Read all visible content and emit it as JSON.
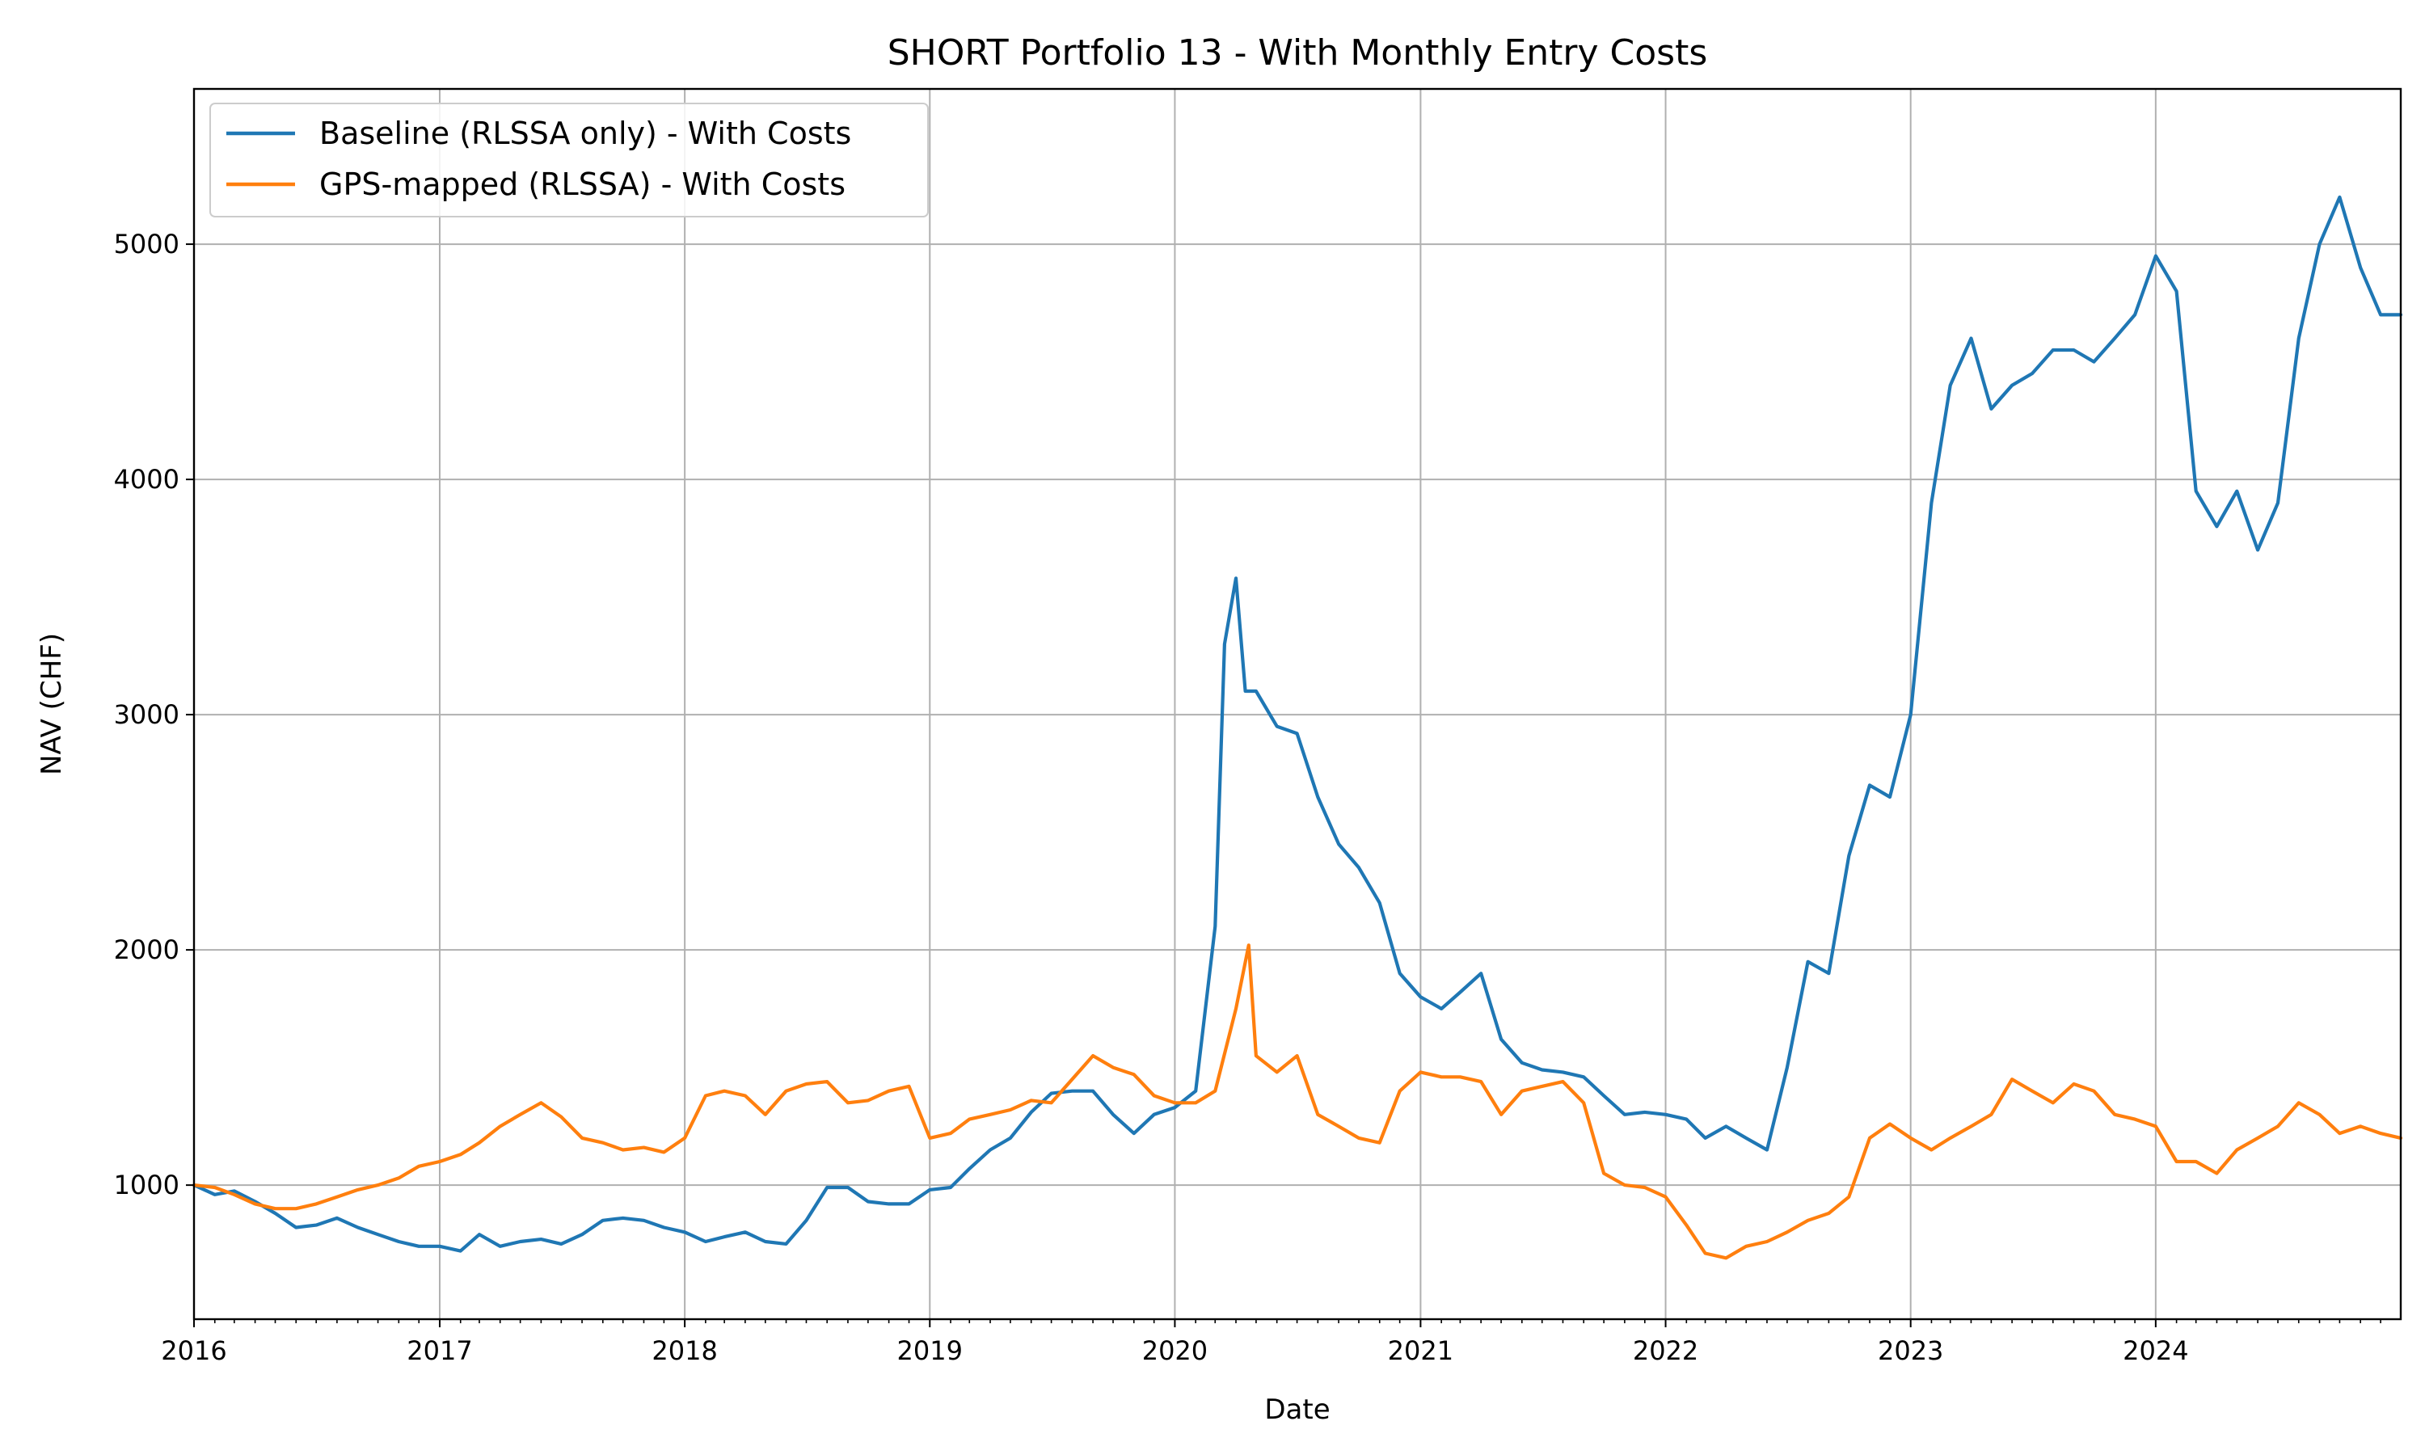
{
  "chart_data": {
    "type": "line",
    "title": "SHORT Portfolio 13 - With Monthly Entry Costs",
    "xlabel": "Date",
    "ylabel": "NAV (CHF)",
    "xlim": [
      "2016-01-01",
      "2024-12-31"
    ],
    "ylim": [
      430,
      5660
    ],
    "x_ticks": [
      "2016",
      "2017",
      "2018",
      "2019",
      "2020",
      "2021",
      "2022",
      "2023",
      "2024"
    ],
    "y_ticks": [
      1000,
      2000,
      3000,
      4000,
      5000
    ],
    "grid": true,
    "legend_position": "upper-left",
    "series": [
      {
        "name": "Baseline (RLSSA only) - With Costs",
        "color": "#1f77b4",
        "points": [
          [
            "2016-01-01",
            1000
          ],
          [
            "2016-02-01",
            960
          ],
          [
            "2016-03-01",
            975
          ],
          [
            "2016-04-01",
            930
          ],
          [
            "2016-05-01",
            880
          ],
          [
            "2016-06-01",
            820
          ],
          [
            "2016-07-01",
            830
          ],
          [
            "2016-08-01",
            860
          ],
          [
            "2016-09-01",
            820
          ],
          [
            "2016-10-01",
            790
          ],
          [
            "2016-11-01",
            760
          ],
          [
            "2016-12-01",
            740
          ],
          [
            "2017-01-01",
            740
          ],
          [
            "2017-02-01",
            720
          ],
          [
            "2017-03-01",
            790
          ],
          [
            "2017-04-01",
            740
          ],
          [
            "2017-05-01",
            760
          ],
          [
            "2017-06-01",
            770
          ],
          [
            "2017-07-01",
            750
          ],
          [
            "2017-08-01",
            790
          ],
          [
            "2017-09-01",
            850
          ],
          [
            "2017-10-01",
            860
          ],
          [
            "2017-11-01",
            850
          ],
          [
            "2017-12-01",
            820
          ],
          [
            "2018-01-01",
            800
          ],
          [
            "2018-02-01",
            760
          ],
          [
            "2018-03-01",
            780
          ],
          [
            "2018-04-01",
            800
          ],
          [
            "2018-05-01",
            760
          ],
          [
            "2018-06-01",
            750
          ],
          [
            "2018-07-01",
            850
          ],
          [
            "2018-08-01",
            990
          ],
          [
            "2018-09-01",
            990
          ],
          [
            "2018-10-01",
            930
          ],
          [
            "2018-11-01",
            920
          ],
          [
            "2018-12-01",
            920
          ],
          [
            "2019-01-01",
            980
          ],
          [
            "2019-02-01",
            990
          ],
          [
            "2019-03-01",
            1070
          ],
          [
            "2019-04-01",
            1150
          ],
          [
            "2019-05-01",
            1200
          ],
          [
            "2019-06-01",
            1310
          ],
          [
            "2019-07-01",
            1390
          ],
          [
            "2019-08-01",
            1400
          ],
          [
            "2019-09-01",
            1400
          ],
          [
            "2019-10-01",
            1300
          ],
          [
            "2019-11-01",
            1220
          ],
          [
            "2019-12-01",
            1300
          ],
          [
            "2020-01-01",
            1330
          ],
          [
            "2020-02-01",
            1400
          ],
          [
            "2020-03-01",
            2100
          ],
          [
            "2020-03-15",
            3300
          ],
          [
            "2020-04-01",
            3580
          ],
          [
            "2020-04-15",
            3100
          ],
          [
            "2020-05-01",
            3100
          ],
          [
            "2020-06-01",
            2950
          ],
          [
            "2020-07-01",
            2920
          ],
          [
            "2020-08-01",
            2650
          ],
          [
            "2020-09-01",
            2450
          ],
          [
            "2020-10-01",
            2350
          ],
          [
            "2020-11-01",
            2200
          ],
          [
            "2020-12-01",
            1900
          ],
          [
            "2021-01-01",
            1800
          ],
          [
            "2021-02-01",
            1750
          ],
          [
            "2021-03-01",
            1820
          ],
          [
            "2021-04-01",
            1900
          ],
          [
            "2021-05-01",
            1620
          ],
          [
            "2021-06-01",
            1520
          ],
          [
            "2021-07-01",
            1490
          ],
          [
            "2021-08-01",
            1480
          ],
          [
            "2021-09-01",
            1460
          ],
          [
            "2021-10-01",
            1380
          ],
          [
            "2021-11-01",
            1300
          ],
          [
            "2021-12-01",
            1310
          ],
          [
            "2022-01-01",
            1300
          ],
          [
            "2022-02-01",
            1280
          ],
          [
            "2022-03-01",
            1200
          ],
          [
            "2022-04-01",
            1250
          ],
          [
            "2022-05-01",
            1200
          ],
          [
            "2022-06-01",
            1150
          ],
          [
            "2022-07-01",
            1500
          ],
          [
            "2022-08-01",
            1950
          ],
          [
            "2022-09-01",
            1900
          ],
          [
            "2022-10-01",
            2400
          ],
          [
            "2022-11-01",
            2700
          ],
          [
            "2022-12-01",
            2650
          ],
          [
            "2023-01-01",
            3000
          ],
          [
            "2023-02-01",
            3900
          ],
          [
            "2023-03-01",
            4400
          ],
          [
            "2023-04-01",
            4600
          ],
          [
            "2023-05-01",
            4300
          ],
          [
            "2023-06-01",
            4400
          ],
          [
            "2023-07-01",
            4450
          ],
          [
            "2023-08-01",
            4550
          ],
          [
            "2023-09-01",
            4550
          ],
          [
            "2023-10-01",
            4500
          ],
          [
            "2023-11-01",
            4600
          ],
          [
            "2023-12-01",
            4700
          ],
          [
            "2024-01-01",
            4950
          ],
          [
            "2024-02-01",
            4800
          ],
          [
            "2024-03-01",
            3950
          ],
          [
            "2024-04-01",
            3800
          ],
          [
            "2024-05-01",
            3950
          ],
          [
            "2024-06-01",
            3700
          ],
          [
            "2024-07-01",
            3900
          ],
          [
            "2024-08-01",
            4600
          ],
          [
            "2024-09-01",
            5000
          ],
          [
            "2024-10-01",
            5200
          ],
          [
            "2024-11-01",
            4900
          ],
          [
            "2024-12-01",
            4700
          ],
          [
            "2024-12-31",
            4700
          ]
        ]
      },
      {
        "name": "GPS-mapped (RLSSA) - With Costs",
        "color": "#ff7f0e",
        "points": [
          [
            "2016-01-01",
            1000
          ],
          [
            "2016-02-01",
            990
          ],
          [
            "2016-03-01",
            960
          ],
          [
            "2016-04-01",
            920
          ],
          [
            "2016-05-01",
            900
          ],
          [
            "2016-06-01",
            900
          ],
          [
            "2016-07-01",
            920
          ],
          [
            "2016-08-01",
            950
          ],
          [
            "2016-09-01",
            980
          ],
          [
            "2016-10-01",
            1000
          ],
          [
            "2016-11-01",
            1030
          ],
          [
            "2016-12-01",
            1080
          ],
          [
            "2017-01-01",
            1100
          ],
          [
            "2017-02-01",
            1130
          ],
          [
            "2017-03-01",
            1180
          ],
          [
            "2017-04-01",
            1250
          ],
          [
            "2017-05-01",
            1300
          ],
          [
            "2017-06-01",
            1350
          ],
          [
            "2017-07-01",
            1290
          ],
          [
            "2017-08-01",
            1200
          ],
          [
            "2017-09-01",
            1180
          ],
          [
            "2017-10-01",
            1150
          ],
          [
            "2017-11-01",
            1160
          ],
          [
            "2017-12-01",
            1140
          ],
          [
            "2018-01-01",
            1200
          ],
          [
            "2018-02-01",
            1380
          ],
          [
            "2018-03-01",
            1400
          ],
          [
            "2018-04-01",
            1380
          ],
          [
            "2018-05-01",
            1300
          ],
          [
            "2018-06-01",
            1400
          ],
          [
            "2018-07-01",
            1430
          ],
          [
            "2018-08-01",
            1440
          ],
          [
            "2018-09-01",
            1350
          ],
          [
            "2018-10-01",
            1360
          ],
          [
            "2018-11-01",
            1400
          ],
          [
            "2018-12-01",
            1420
          ],
          [
            "2019-01-01",
            1200
          ],
          [
            "2019-02-01",
            1220
          ],
          [
            "2019-03-01",
            1280
          ],
          [
            "2019-04-01",
            1300
          ],
          [
            "2019-05-01",
            1320
          ],
          [
            "2019-06-01",
            1360
          ],
          [
            "2019-07-01",
            1350
          ],
          [
            "2019-08-01",
            1450
          ],
          [
            "2019-09-01",
            1550
          ],
          [
            "2019-10-01",
            1500
          ],
          [
            "2019-11-01",
            1470
          ],
          [
            "2019-12-01",
            1380
          ],
          [
            "2020-01-01",
            1350
          ],
          [
            "2020-02-01",
            1350
          ],
          [
            "2020-03-01",
            1400
          ],
          [
            "2020-04-01",
            1750
          ],
          [
            "2020-04-20",
            2020
          ],
          [
            "2020-05-01",
            1550
          ],
          [
            "2020-06-01",
            1480
          ],
          [
            "2020-07-01",
            1550
          ],
          [
            "2020-08-01",
            1300
          ],
          [
            "2020-09-01",
            1250
          ],
          [
            "2020-10-01",
            1200
          ],
          [
            "2020-11-01",
            1180
          ],
          [
            "2020-12-01",
            1400
          ],
          [
            "2021-01-01",
            1480
          ],
          [
            "2021-02-01",
            1460
          ],
          [
            "2021-03-01",
            1460
          ],
          [
            "2021-04-01",
            1440
          ],
          [
            "2021-05-01",
            1300
          ],
          [
            "2021-06-01",
            1400
          ],
          [
            "2021-07-01",
            1420
          ],
          [
            "2021-08-01",
            1440
          ],
          [
            "2021-09-01",
            1350
          ],
          [
            "2021-10-01",
            1050
          ],
          [
            "2021-11-01",
            1000
          ],
          [
            "2021-12-01",
            990
          ],
          [
            "2022-01-01",
            950
          ],
          [
            "2022-02-01",
            830
          ],
          [
            "2022-03-01",
            710
          ],
          [
            "2022-04-01",
            690
          ],
          [
            "2022-05-01",
            740
          ],
          [
            "2022-06-01",
            760
          ],
          [
            "2022-07-01",
            800
          ],
          [
            "2022-08-01",
            850
          ],
          [
            "2022-09-01",
            880
          ],
          [
            "2022-10-01",
            950
          ],
          [
            "2022-11-01",
            1200
          ],
          [
            "2022-12-01",
            1260
          ],
          [
            "2023-01-01",
            1200
          ],
          [
            "2023-02-01",
            1150
          ],
          [
            "2023-03-01",
            1200
          ],
          [
            "2023-04-01",
            1250
          ],
          [
            "2023-05-01",
            1300
          ],
          [
            "2023-06-01",
            1450
          ],
          [
            "2023-07-01",
            1400
          ],
          [
            "2023-08-01",
            1350
          ],
          [
            "2023-09-01",
            1430
          ],
          [
            "2023-10-01",
            1400
          ],
          [
            "2023-11-01",
            1300
          ],
          [
            "2023-12-01",
            1280
          ],
          [
            "2024-01-01",
            1250
          ],
          [
            "2024-02-01",
            1100
          ],
          [
            "2024-03-01",
            1100
          ],
          [
            "2024-04-01",
            1050
          ],
          [
            "2024-05-01",
            1150
          ],
          [
            "2024-06-01",
            1200
          ],
          [
            "2024-07-01",
            1250
          ],
          [
            "2024-08-01",
            1350
          ],
          [
            "2024-09-01",
            1300
          ],
          [
            "2024-10-01",
            1220
          ],
          [
            "2024-11-01",
            1250
          ],
          [
            "2024-12-01",
            1220
          ],
          [
            "2024-12-31",
            1200
          ]
        ]
      }
    ]
  }
}
